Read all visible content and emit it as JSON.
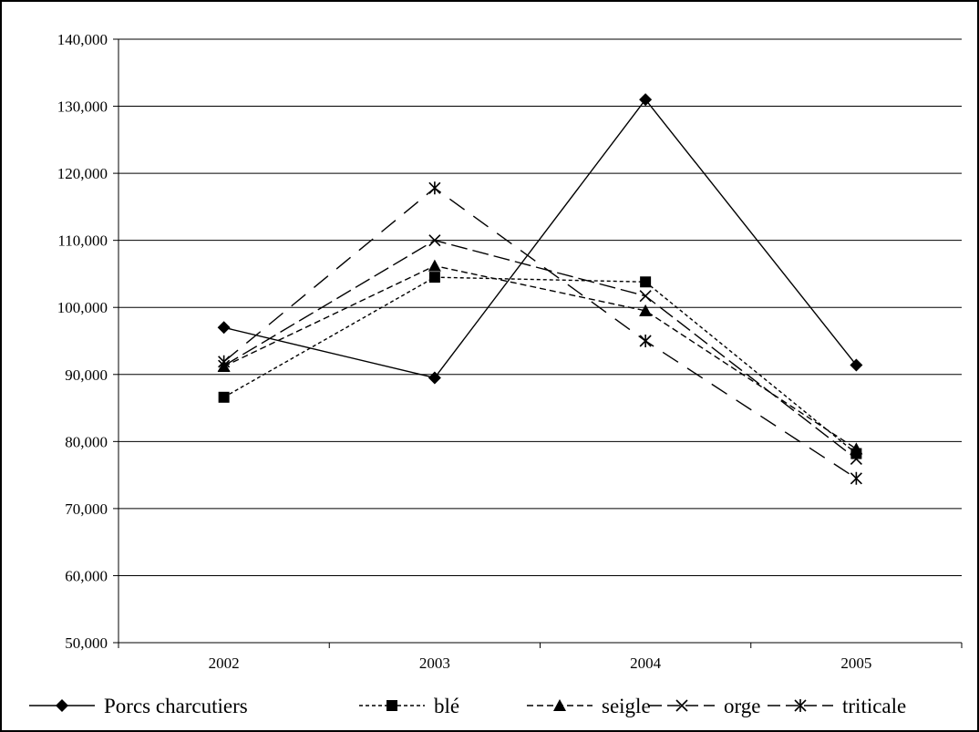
{
  "chart_data": {
    "type": "line",
    "title": "",
    "xlabel": "",
    "ylabel": "",
    "categories": [
      "2002",
      "2003",
      "2004",
      "2005"
    ],
    "ylim": [
      50000,
      140000
    ],
    "yticks": [
      50000,
      60000,
      70000,
      80000,
      90000,
      100000,
      110000,
      120000,
      130000,
      140000
    ],
    "ytick_labels": [
      "50,000",
      "60,000",
      "70,000",
      "80,000",
      "90,000",
      "100,000",
      "110,000",
      "120,000",
      "130,000",
      "140,000"
    ],
    "grid": "horizontal",
    "legend_position": "bottom",
    "series": [
      {
        "name": "Porcs charcutiers",
        "values": [
          97000,
          89500,
          131000,
          91400
        ],
        "marker": "diamond",
        "line_style": "solid",
        "color": "#000000"
      },
      {
        "name": "blé",
        "values": [
          86600,
          104500,
          103800,
          78200
        ],
        "marker": "square",
        "line_style": "short-dash",
        "color": "#000000"
      },
      {
        "name": "seigle",
        "values": [
          91200,
          106200,
          99500,
          78900
        ],
        "marker": "triangle",
        "line_style": "dash",
        "color": "#000000"
      },
      {
        "name": "orge",
        "values": [
          91300,
          110000,
          101700,
          77400
        ],
        "marker": "x",
        "line_style": "long-dash",
        "color": "#000000"
      },
      {
        "name": "triticale",
        "values": [
          91900,
          117800,
          95000,
          74500
        ],
        "marker": "star",
        "line_style": "long-dash-wide",
        "color": "#000000"
      }
    ]
  }
}
